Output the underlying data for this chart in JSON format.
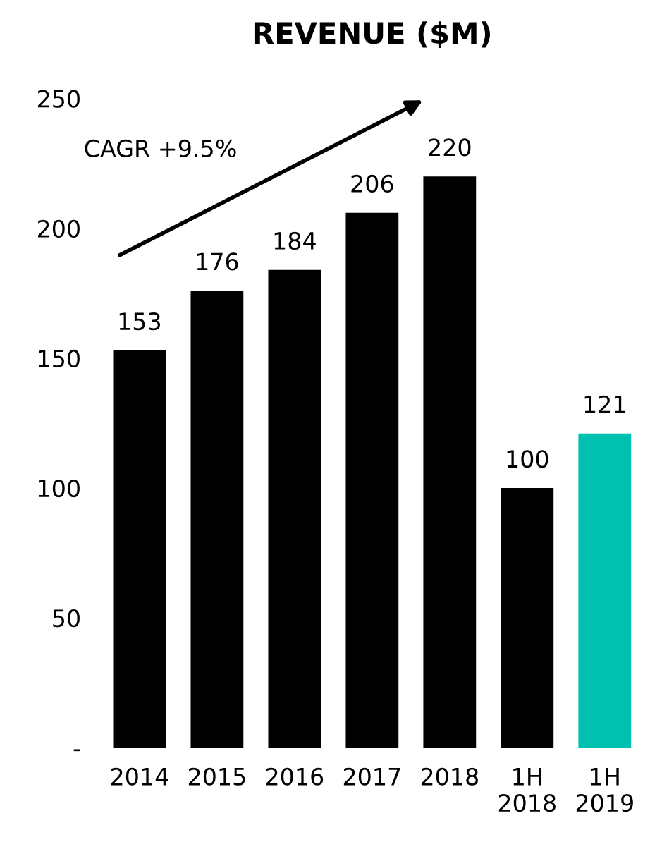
{
  "chart_data": {
    "type": "bar",
    "title": "REVENUE ($M)",
    "categories": [
      "2014",
      "2015",
      "2016",
      "2017",
      "2018",
      "1H\n2018",
      "1H\n2019"
    ],
    "values": [
      153,
      176,
      184,
      206,
      220,
      100,
      121
    ],
    "colors": [
      "#000000",
      "#000000",
      "#000000",
      "#000000",
      "#000000",
      "#000000",
      "#00c0b0"
    ],
    "ylim": [
      0,
      250
    ],
    "yticks": [
      {
        "value": 0,
        "label": "-"
      },
      50,
      100,
      150,
      200,
      250
    ],
    "data_labels": true,
    "grid": false,
    "legend": false,
    "annotations": [
      "CAGR +9.5%"
    ]
  }
}
